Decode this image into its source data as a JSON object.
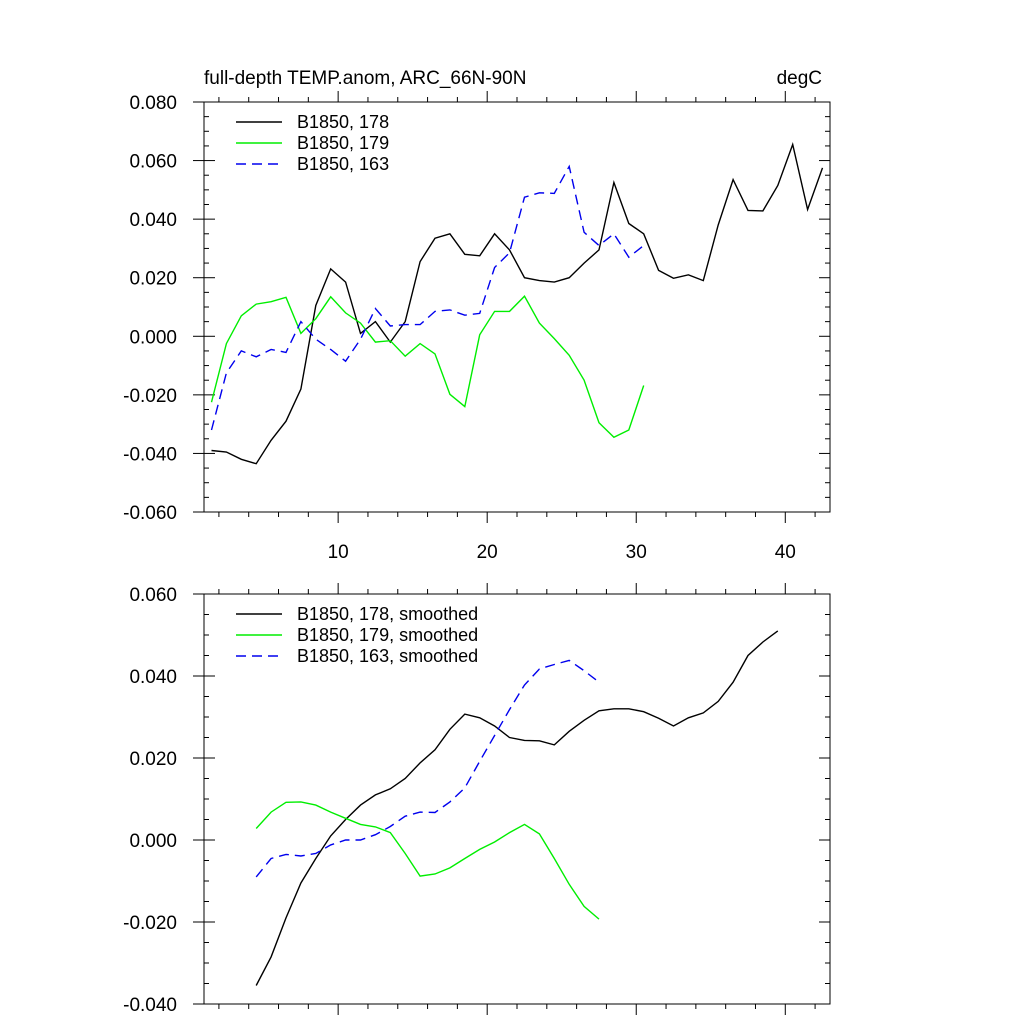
{
  "chart_data": [
    {
      "type": "line",
      "title": "full-depth TEMP.anom, ARC_66N-90N",
      "units": "degC",
      "xlim": [
        1,
        43
      ],
      "ylim": [
        -0.06,
        0.08
      ],
      "xticks": [
        10,
        20,
        30,
        40
      ],
      "xtick_labels": [
        "10",
        "20",
        "30",
        "40"
      ],
      "yticks": [
        -0.06,
        -0.04,
        -0.02,
        0.0,
        0.02,
        0.04,
        0.06,
        0.08
      ],
      "ytick_labels": [
        "-0.060",
        "-0.040",
        "-0.020",
        "0.000",
        "0.020",
        "0.040",
        "0.060",
        "0.080"
      ],
      "legend_position": "top-left",
      "series": [
        {
          "name": "B1850, 178",
          "color": "#000000",
          "dash": "solid",
          "x": [
            1.5,
            2.5,
            3.5,
            4.5,
            5.5,
            6.5,
            7.5,
            8.5,
            9.5,
            10.5,
            11.5,
            12.5,
            13.5,
            14.5,
            15.5,
            16.5,
            17.5,
            18.5,
            19.5,
            20.5,
            21.5,
            22.5,
            23.5,
            24.5,
            25.5,
            26.5,
            27.5,
            28.5,
            29.5,
            30.5,
            31.5,
            32.5,
            33.5,
            34.5,
            35.5,
            36.5,
            37.5,
            38.5,
            39.5,
            40.5,
            41.5,
            42.5
          ],
          "values": [
            -0.039,
            -0.0395,
            -0.042,
            -0.0435,
            -0.0355,
            -0.029,
            -0.018,
            0.0105,
            0.023,
            0.0185,
            0.001,
            0.005,
            -0.002,
            0.005,
            0.0255,
            0.0335,
            0.035,
            0.028,
            0.0275,
            0.035,
            0.0295,
            0.02,
            0.019,
            0.0185,
            0.02,
            0.025,
            0.0295,
            0.0525,
            0.0385,
            0.035,
            0.0225,
            0.0198,
            0.021,
            0.019,
            0.038,
            0.0535,
            0.043,
            0.0428,
            0.0515,
            0.0655,
            0.0433,
            0.0575
          ]
        },
        {
          "name": "B1850, 179",
          "color": "#00ee00",
          "dash": "solid",
          "x": [
            1.5,
            2.5,
            3.5,
            4.5,
            5.5,
            6.5,
            7.5,
            8.5,
            9.5,
            10.5,
            11.5,
            12.5,
            13.5,
            14.5,
            15.5,
            16.5,
            17.5,
            18.5,
            19.5,
            20.5,
            21.5,
            22.5,
            23.5,
            24.5,
            25.5,
            26.5,
            27.5,
            28.5,
            29.5,
            30.5
          ],
          "values": [
            -0.0225,
            -0.0025,
            0.007,
            0.011,
            0.0118,
            0.0133,
            0.001,
            0.006,
            0.0135,
            0.008,
            0.0045,
            -0.002,
            -0.0015,
            -0.0068,
            -0.0025,
            -0.006,
            -0.0198,
            -0.024,
            0.0005,
            0.0085,
            0.0085,
            0.0137,
            0.0045,
            -0.0008,
            -0.0065,
            -0.015,
            -0.0295,
            -0.0345,
            -0.032,
            -0.0168
          ]
        },
        {
          "name": "B1850, 163",
          "color": "#0000ee",
          "dash": "dashed",
          "x": [
            1.5,
            2.5,
            3.5,
            4.5,
            5.5,
            6.5,
            7.5,
            8.5,
            9.5,
            10.5,
            11.5,
            12.5,
            13.5,
            14.5,
            15.5,
            16.5,
            17.5,
            18.5,
            19.5,
            20.5,
            21.5,
            22.5,
            23.5,
            24.5,
            25.5,
            26.5,
            27.5,
            28.5,
            29.5,
            30.5
          ],
          "values": [
            -0.032,
            -0.0125,
            -0.005,
            -0.007,
            -0.0045,
            -0.0055,
            0.005,
            -0.001,
            -0.0045,
            -0.0085,
            -0.001,
            0.0095,
            0.0035,
            0.004,
            0.004,
            0.0085,
            0.009,
            0.0072,
            0.0078,
            0.0235,
            0.0285,
            0.0475,
            0.049,
            0.0488,
            0.058,
            0.0355,
            0.031,
            0.035,
            0.027,
            0.031
          ]
        }
      ]
    },
    {
      "type": "line",
      "xlim": [
        1,
        43
      ],
      "ylim": [
        -0.04,
        0.06
      ],
      "xticks": [
        10,
        20,
        30,
        40
      ],
      "yticks": [
        -0.04,
        -0.02,
        0.0,
        0.02,
        0.04,
        0.06
      ],
      "ytick_labels": [
        "-0.040",
        "-0.020",
        "0.000",
        "0.020",
        "0.040",
        "0.060"
      ],
      "legend_position": "top-left",
      "series": [
        {
          "name": "B1850, 178, smoothed",
          "color": "#000000",
          "dash": "solid",
          "x": [
            4.5,
            5.5,
            6.5,
            7.5,
            8.5,
            9.5,
            10.5,
            11.5,
            12.5,
            13.5,
            14.5,
            15.5,
            16.5,
            17.5,
            18.5,
            19.5,
            20.5,
            21.5,
            22.5,
            23.5,
            24.5,
            25.5,
            26.5,
            27.5,
            28.5,
            29.5,
            30.5,
            31.5,
            32.5,
            33.5,
            34.5,
            35.5,
            36.5,
            37.5,
            38.5,
            39.5
          ],
          "values": [
            -0.0355,
            -0.0285,
            -0.019,
            -0.0105,
            -0.0045,
            0.001,
            0.005,
            0.0085,
            0.011,
            0.0125,
            0.015,
            0.0188,
            0.022,
            0.027,
            0.0307,
            0.0298,
            0.0278,
            0.025,
            0.0243,
            0.0242,
            0.0232,
            0.0265,
            0.0292,
            0.0315,
            0.032,
            0.032,
            0.0313,
            0.0297,
            0.0278,
            0.0298,
            0.031,
            0.0338,
            0.0385,
            0.045,
            0.0483,
            0.051
          ]
        },
        {
          "name": "B1850, 179, smoothed",
          "color": "#00ee00",
          "dash": "solid",
          "x": [
            4.5,
            5.5,
            6.5,
            7.5,
            8.5,
            9.5,
            10.5,
            11.5,
            12.5,
            13.5,
            14.5,
            15.5,
            16.5,
            17.5,
            18.5,
            19.5,
            20.5,
            21.5,
            22.5,
            23.5,
            24.5,
            25.5,
            26.5,
            27.5
          ],
          "values": [
            0.0028,
            0.0068,
            0.0092,
            0.0093,
            0.0085,
            0.0068,
            0.0053,
            0.0038,
            0.0032,
            0.0018,
            -0.0033,
            -0.0088,
            -0.0083,
            -0.0068,
            -0.0045,
            -0.0023,
            -0.0005,
            0.0018,
            0.0038,
            0.0015,
            -0.0045,
            -0.0108,
            -0.0162,
            -0.0193
          ]
        },
        {
          "name": "B1850, 163, smoothed",
          "color": "#0000ee",
          "dash": "dashed",
          "x": [
            4.5,
            5.5,
            6.5,
            7.5,
            8.5,
            9.5,
            10.5,
            11.5,
            12.5,
            13.5,
            14.5,
            15.5,
            16.5,
            17.5,
            18.5,
            19.5,
            20.5,
            21.5,
            22.5,
            23.5,
            24.5,
            25.5,
            26.5,
            27.5
          ],
          "values": [
            -0.009,
            -0.0045,
            -0.0035,
            -0.0039,
            -0.0033,
            -0.0012,
            0.0,
            0.0,
            0.0013,
            0.0033,
            0.0058,
            0.0068,
            0.0067,
            0.0093,
            0.0127,
            0.0192,
            0.0255,
            0.0318,
            0.0378,
            0.0417,
            0.0428,
            0.0438,
            0.0413,
            0.0385
          ]
        }
      ]
    }
  ]
}
